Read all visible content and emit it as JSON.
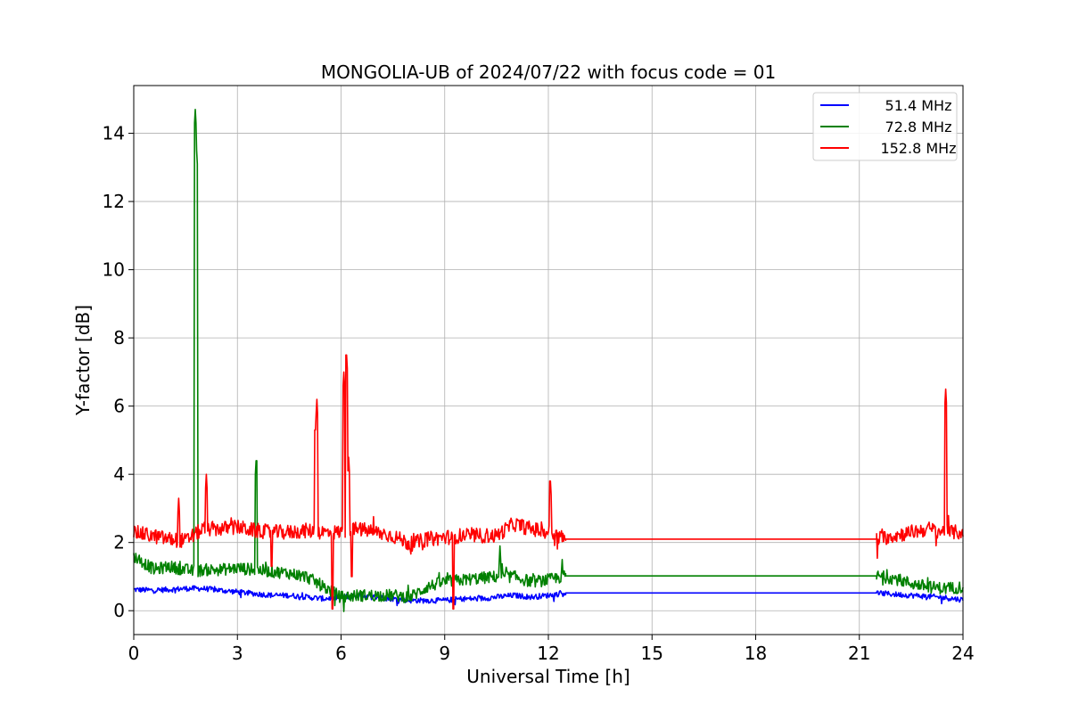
{
  "chart_data": {
    "type": "line",
    "title": "MONGOLIA-UB of 2024/07/22 with focus code = 01",
    "xlabel": "Universal Time [h]",
    "ylabel": "Y-factor [dB]",
    "xlim": [
      0,
      24
    ],
    "ylim": [
      -0.7,
      15.4
    ],
    "xticks": [
      0,
      3,
      6,
      9,
      12,
      15,
      18,
      21,
      24
    ],
    "yticks": [
      0,
      2,
      4,
      6,
      8,
      10,
      12,
      14
    ],
    "grid": true,
    "legend_position": "top-right",
    "series": [
      {
        "name": "51.4 MHz",
        "color": "#0000ff",
        "x": [
          0,
          0.5,
          1,
          1.5,
          2,
          2.5,
          3,
          3.5,
          4,
          4.5,
          5,
          5.5,
          6,
          6.5,
          7,
          7.5,
          8,
          8.5,
          9,
          9.5,
          10,
          10.5,
          11,
          11.5,
          12,
          12.5,
          21.5,
          22,
          22.5,
          23,
          23.5,
          24
        ],
        "y": [
          0.62,
          0.6,
          0.62,
          0.65,
          0.65,
          0.6,
          0.55,
          0.5,
          0.45,
          0.45,
          0.4,
          0.35,
          0.4,
          0.45,
          0.4,
          0.35,
          0.3,
          0.3,
          0.3,
          0.35,
          0.35,
          0.4,
          0.45,
          0.4,
          0.45,
          0.52,
          0.52,
          0.48,
          0.45,
          0.42,
          0.38,
          0.32
        ],
        "noise": 0.08
      },
      {
        "name": "72.8 MHz",
        "color": "#008000",
        "x": [
          0,
          0.3,
          0.6,
          1,
          1.5,
          1.8,
          2,
          2.5,
          3,
          3.5,
          4,
          4.5,
          5,
          5.5,
          6,
          6.5,
          7,
          7.5,
          8,
          8.5,
          9,
          9.5,
          10,
          10.5,
          11,
          11.5,
          12,
          12.5,
          21.5,
          22,
          22.5,
          23,
          23.5,
          24
        ],
        "y": [
          1.6,
          1.4,
          1.2,
          1.3,
          1.2,
          1.15,
          1.2,
          1.2,
          1.25,
          1.2,
          1.15,
          1.1,
          1.0,
          0.7,
          0.4,
          0.45,
          0.45,
          0.45,
          0.4,
          0.7,
          0.85,
          0.9,
          0.95,
          1.0,
          1.0,
          0.85,
          0.9,
          1.02,
          1.02,
          0.95,
          0.8,
          0.7,
          0.65,
          0.7
        ],
        "noise": 0.18,
        "spikes": [
          [
            1.78,
            14.7
          ],
          [
            1.82,
            13.5
          ],
          [
            3.55,
            4.6
          ],
          [
            10.6,
            1.9
          ],
          [
            12.4,
            1.5
          ]
        ]
      },
      {
        "name": "152.8 MHz",
        "color": "#ff0000",
        "x": [
          0,
          0.5,
          1,
          1.5,
          2,
          2.5,
          3,
          3.5,
          4,
          4.5,
          5,
          5.5,
          6,
          6.5,
          7,
          7.5,
          8,
          8.5,
          9,
          9.5,
          10,
          10.5,
          11,
          11.5,
          12,
          12.5,
          21.5,
          22,
          22.5,
          23,
          23.5,
          24
        ],
        "y": [
          2.3,
          2.2,
          2.1,
          2.05,
          2.4,
          2.4,
          2.45,
          2.35,
          2.3,
          2.3,
          2.35,
          2.3,
          2.3,
          2.4,
          2.3,
          2.2,
          1.95,
          2.1,
          2.15,
          2.2,
          2.2,
          2.2,
          2.55,
          2.4,
          2.3,
          2.1,
          2.1,
          2.2,
          2.3,
          2.4,
          2.3,
          2.3
        ],
        "noise": 0.22,
        "spikes": [
          [
            1.3,
            3.3
          ],
          [
            2.1,
            4.0
          ],
          [
            5.25,
            5.5
          ],
          [
            5.3,
            6.2
          ],
          [
            6.08,
            7.0
          ],
          [
            6.15,
            7.7
          ],
          [
            6.22,
            4.5
          ],
          [
            12.05,
            4.0
          ],
          [
            23.5,
            6.5
          ]
        ],
        "dips": [
          [
            5.75,
            0.05
          ],
          [
            9.25,
            0.05
          ],
          [
            6.3,
            1.0
          ],
          [
            4.0,
            1.3
          ]
        ]
      }
    ]
  }
}
